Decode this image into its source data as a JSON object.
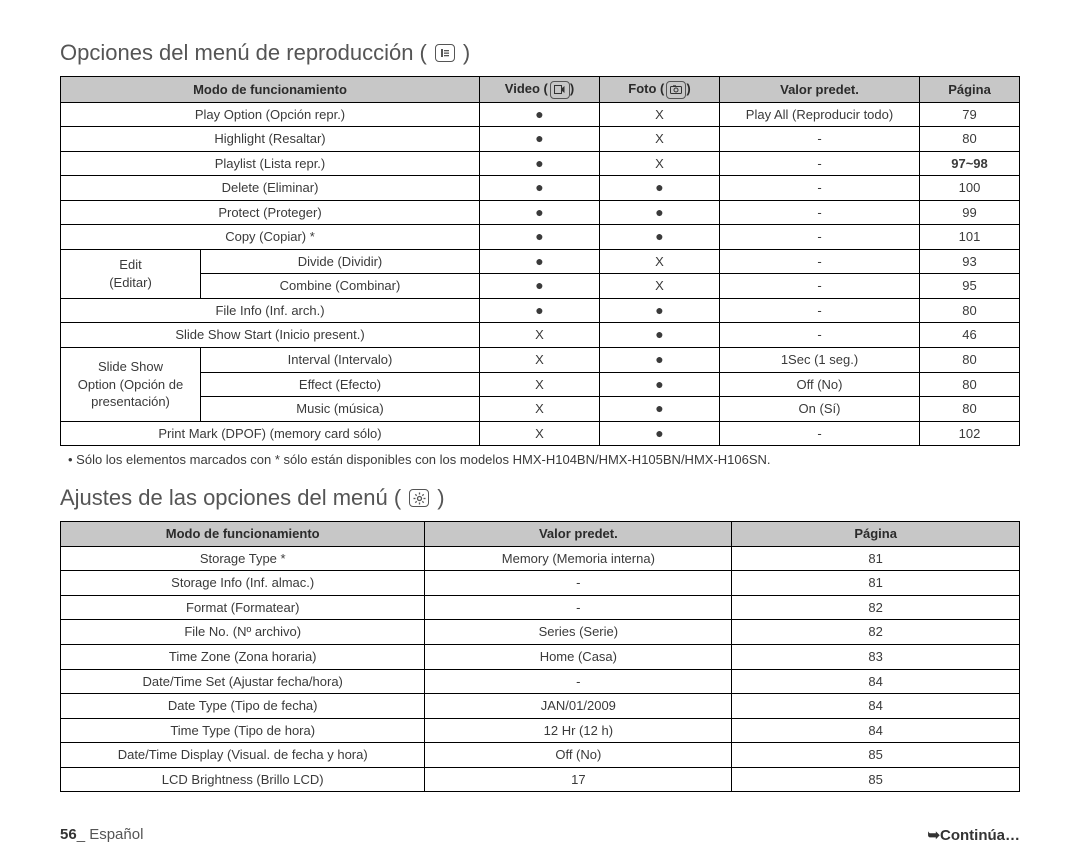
{
  "section1": {
    "title": "Opciones del menú de reproducción (",
    "title_after": ")",
    "columns": [
      "Modo de funcionamiento",
      "Video (",
      ")",
      "Foto (",
      ")",
      "Valor predet.",
      "Página"
    ],
    "rows": [
      {
        "mode": "Play Option (Opción repr.)",
        "video": "●",
        "foto": "X",
        "def": "Play All (Reproducir todo)",
        "page": "79"
      },
      {
        "mode": "Highlight (Resaltar)",
        "video": "●",
        "foto": "X",
        "def": "-",
        "page": "80"
      },
      {
        "mode": "Playlist (Lista repr.)",
        "video": "●",
        "foto": "X",
        "def": "-",
        "page": "97~98",
        "page_bold": true
      },
      {
        "mode": "Delete (Eliminar)",
        "video": "●",
        "foto": "●",
        "def": "-",
        "page": "100"
      },
      {
        "mode": "Protect (Proteger)",
        "video": "●",
        "foto": "●",
        "def": "-",
        "page": "99"
      },
      {
        "mode": "Copy (Copiar) *",
        "video": "●",
        "foto": "●",
        "def": "-",
        "page": "101"
      }
    ],
    "edit_group_label": "Edit\n(Editar)",
    "edit_rows": [
      {
        "mode": "Divide (Dividir)",
        "video": "●",
        "foto": "X",
        "def": "-",
        "page": "93"
      },
      {
        "mode": "Combine (Combinar)",
        "video": "●",
        "foto": "X",
        "def": "-",
        "page": "95"
      }
    ],
    "post_edit_rows": [
      {
        "mode": "File Info (Inf. arch.)",
        "video": "●",
        "foto": "●",
        "def": "-",
        "page": "80"
      },
      {
        "mode": "Slide Show Start (Inicio present.)",
        "video": "X",
        "foto": "●",
        "def": "-",
        "page": "46"
      }
    ],
    "slide_group_label": "Slide Show\nOption (Opción de\npresentación)",
    "slide_rows": [
      {
        "mode": "Interval (Intervalo)",
        "video": "X",
        "foto": "●",
        "def": "1Sec (1 seg.)",
        "page": "80"
      },
      {
        "mode": "Effect (Efecto)",
        "video": "X",
        "foto": "●",
        "def": "Off (No)",
        "page": "80"
      },
      {
        "mode": "Music (música)",
        "video": "X",
        "foto": "●",
        "def": "On (Sí)",
        "page": "80"
      }
    ],
    "final_rows": [
      {
        "mode": "Print Mark (DPOF) (memory card sólo)",
        "video": "X",
        "foto": "●",
        "def": "-",
        "page": "102"
      }
    ],
    "note": "•  Sólo los elementos marcados con * sólo están disponibles con los modelos HMX-H104BN/HMX-H105BN/HMX-H106SN."
  },
  "section2": {
    "title": "Ajustes de las opciones del menú (",
    "title_after": ")",
    "columns": [
      "Modo de funcionamiento",
      "Valor predet.",
      "Página"
    ],
    "rows": [
      {
        "mode": "Storage Type *",
        "def": "Memory (Memoria interna)",
        "page": "81"
      },
      {
        "mode": "Storage Info (Inf. almac.)",
        "def": "-",
        "page": "81"
      },
      {
        "mode": "Format (Formatear)",
        "def": "-",
        "page": "82"
      },
      {
        "mode": "File No. (Nº archivo)",
        "def": "Series (Serie)",
        "page": "82"
      },
      {
        "mode": "Time Zone (Zona horaria)",
        "def": "Home (Casa)",
        "page": "83"
      },
      {
        "mode": "Date/Time Set (Ajustar fecha/hora)",
        "def": "-",
        "page": "84"
      },
      {
        "mode": "Date Type (Tipo de fecha)",
        "def": "JAN/01/2009",
        "page": "84"
      },
      {
        "mode": "Time Type (Tipo de hora)",
        "def": "12 Hr (12 h)",
        "page": "84"
      },
      {
        "mode": "Date/Time Display (Visual. de fecha y hora)",
        "def": "Off (No)",
        "page": "85"
      },
      {
        "mode": "LCD Brightness (Brillo LCD)",
        "def": "17",
        "page": "85"
      }
    ]
  },
  "footer": {
    "page_num": "56",
    "page_lang": "_ Español",
    "continue": "➥Continúa…"
  },
  "colors": {
    "header_bg": "#c7c7c7",
    "border": "#000000",
    "text": "#3a3a3a",
    "heading": "#555555"
  }
}
